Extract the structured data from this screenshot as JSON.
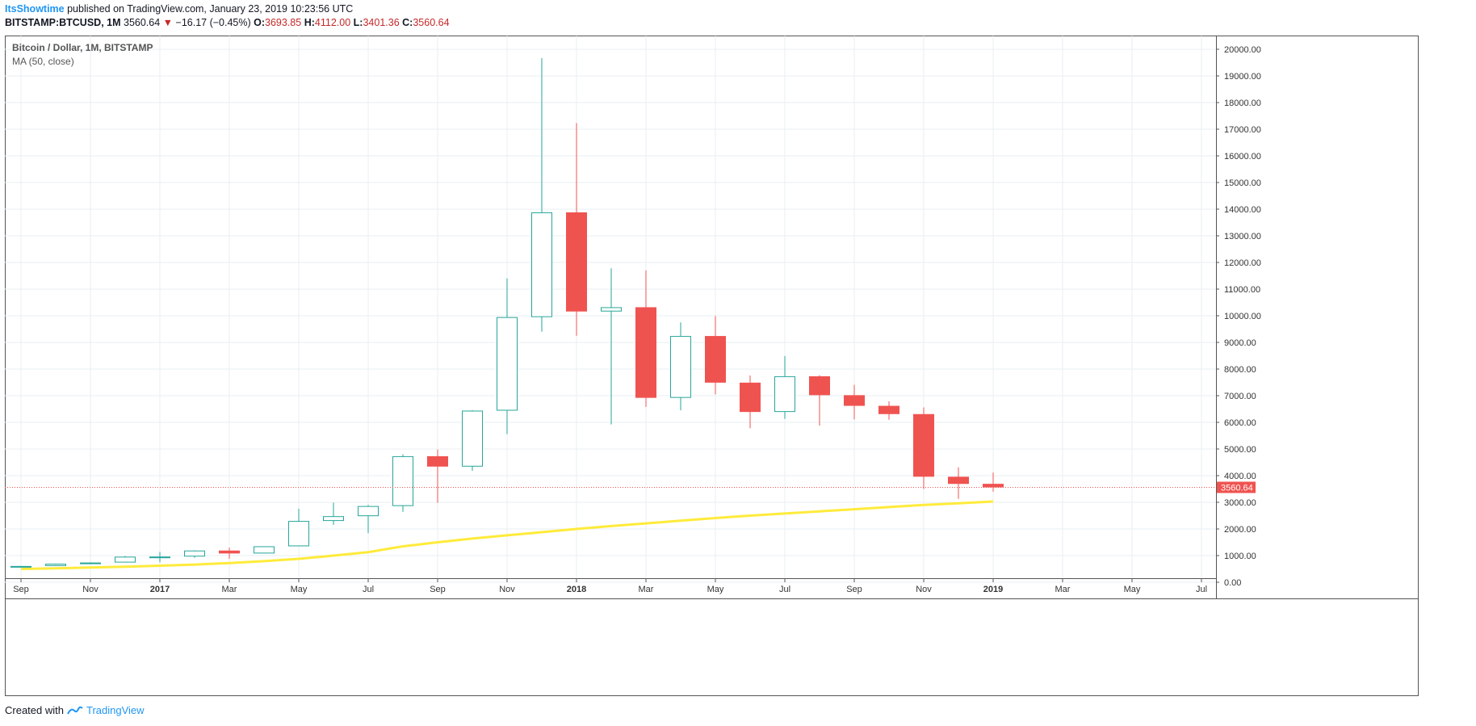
{
  "header": {
    "author": "ItsShowtime",
    "published_text": "published on TradingView.com, January 23, 2019 10:23:56 UTC"
  },
  "quote": {
    "symbol": "BITSTAMP:BTCUSD, 1M",
    "last": "3560.64",
    "arrow": "▼",
    "change": "−16.17 (−0.45%)",
    "o_label": "O:",
    "o_value": "3693.85",
    "h_label": "H:",
    "h_value": "4112.00",
    "l_label": "L:",
    "l_value": "3401.36",
    "c_label": "C:",
    "c_value": "3560.64"
  },
  "legend": {
    "series_title": "Bitcoin / Dollar, 1M, BITSTAMP",
    "indicator": "MA (50, close)"
  },
  "footer": {
    "created_with": "Created with",
    "brand": "TradingView"
  },
  "colors": {
    "up": "#26a69a",
    "down": "#ef5350",
    "ma": "#ffeb3b",
    "grid": "#e9eff3",
    "price_line": "#ef5350"
  },
  "chart_data": {
    "type": "candlestick",
    "title": "Bitcoin / Dollar, 1M, BITSTAMP",
    "ylim": [
      -700,
      20500
    ],
    "y_ticks": [
      0,
      1000,
      2000,
      3000,
      4000,
      5000,
      6000,
      7000,
      8000,
      9000,
      10000,
      11000,
      12000,
      13000,
      14000,
      15000,
      16000,
      17000,
      18000,
      19000,
      20000
    ],
    "y_tick_labels": [
      "0.00",
      "1000.00",
      "2000.00",
      "3000.00",
      "4000.00",
      "5000.00",
      "6000.00",
      "7000.00",
      "8000.00",
      "9000.00",
      "10000.00",
      "11000.00",
      "12000.00",
      "13000.00",
      "14000.00",
      "15000.00",
      "16000.00",
      "17000.00",
      "18000.00",
      "19000.00",
      "20000.00"
    ],
    "x_labels": [
      {
        "label": "Sep",
        "bold": false
      },
      {
        "label": "Nov",
        "bold": false
      },
      {
        "label": "2017",
        "bold": true
      },
      {
        "label": "Mar",
        "bold": false
      },
      {
        "label": "May",
        "bold": false
      },
      {
        "label": "Jul",
        "bold": false
      },
      {
        "label": "Sep",
        "bold": false
      },
      {
        "label": "Nov",
        "bold": false
      },
      {
        "label": "2018",
        "bold": true
      },
      {
        "label": "Mar",
        "bold": false
      },
      {
        "label": "May",
        "bold": false
      },
      {
        "label": "Jul",
        "bold": false
      },
      {
        "label": "Sep",
        "bold": false
      },
      {
        "label": "Nov",
        "bold": false
      },
      {
        "label": "2019",
        "bold": true
      },
      {
        "label": "Mar",
        "bold": false
      },
      {
        "label": "May",
        "bold": false
      },
      {
        "label": "Jul",
        "bold": false
      }
    ],
    "candles": [
      {
        "t": "2016-09",
        "o": 575,
        "h": 610,
        "l": 570,
        "c": 610
      },
      {
        "t": "2016-10",
        "o": 610,
        "h": 700,
        "l": 605,
        "c": 695
      },
      {
        "t": "2016-11",
        "o": 695,
        "h": 750,
        "l": 690,
        "c": 740
      },
      {
        "t": "2016-12",
        "o": 740,
        "h": 980,
        "l": 740,
        "c": 960
      },
      {
        "t": "2017-01",
        "o": 960,
        "h": 1140,
        "l": 750,
        "c": 965
      },
      {
        "t": "2017-02",
        "o": 965,
        "h": 1200,
        "l": 915,
        "c": 1190
      },
      {
        "t": "2017-03",
        "o": 1190,
        "h": 1300,
        "l": 880,
        "c": 1080
      },
      {
        "t": "2017-04",
        "o": 1080,
        "h": 1350,
        "l": 1080,
        "c": 1350
      },
      {
        "t": "2017-05",
        "o": 1350,
        "h": 2760,
        "l": 1350,
        "c": 2300
      },
      {
        "t": "2017-06",
        "o": 2300,
        "h": 2990,
        "l": 2150,
        "c": 2480
      },
      {
        "t": "2017-07",
        "o": 2480,
        "h": 2900,
        "l": 1840,
        "c": 2860
      },
      {
        "t": "2017-08",
        "o": 2860,
        "h": 4800,
        "l": 2640,
        "c": 4730
      },
      {
        "t": "2017-09",
        "o": 4730,
        "h": 4980,
        "l": 2980,
        "c": 4340
      },
      {
        "t": "2017-10",
        "o": 4340,
        "h": 6460,
        "l": 4180,
        "c": 6440
      },
      {
        "t": "2017-11",
        "o": 6440,
        "h": 11400,
        "l": 5560,
        "c": 9950
      },
      {
        "t": "2017-12",
        "o": 9950,
        "h": 19670,
        "l": 9400,
        "c": 13880
      },
      {
        "t": "2018-01",
        "o": 13880,
        "h": 17230,
        "l": 9250,
        "c": 10160
      },
      {
        "t": "2018-02",
        "o": 10160,
        "h": 11780,
        "l": 5920,
        "c": 10320
      },
      {
        "t": "2018-03",
        "o": 10320,
        "h": 11700,
        "l": 6580,
        "c": 6920
      },
      {
        "t": "2018-04",
        "o": 6920,
        "h": 9750,
        "l": 6450,
        "c": 9240
      },
      {
        "t": "2018-05",
        "o": 9240,
        "h": 9990,
        "l": 7050,
        "c": 7490
      },
      {
        "t": "2018-06",
        "o": 7490,
        "h": 7760,
        "l": 5780,
        "c": 6390
      },
      {
        "t": "2018-07",
        "o": 6390,
        "h": 8490,
        "l": 6130,
        "c": 7730
      },
      {
        "t": "2018-08",
        "o": 7730,
        "h": 7770,
        "l": 5880,
        "c": 7020
      },
      {
        "t": "2018-09",
        "o": 7020,
        "h": 7410,
        "l": 6110,
        "c": 6620
      },
      {
        "t": "2018-10",
        "o": 6620,
        "h": 6790,
        "l": 6100,
        "c": 6310
      },
      {
        "t": "2018-11",
        "o": 6310,
        "h": 6560,
        "l": 3500,
        "c": 3960
      },
      {
        "t": "2018-12",
        "o": 3960,
        "h": 4310,
        "l": 3130,
        "c": 3690
      },
      {
        "t": "2019-01",
        "o": 3693.85,
        "h": 4112,
        "l": 3401.36,
        "c": 3560.64
      }
    ],
    "ma": {
      "name": "MA (50, close)",
      "values": [
        330,
        335,
        340,
        348,
        356,
        365,
        375,
        385,
        400,
        415,
        435,
        455,
        475,
        500,
        525,
        555,
        585,
        620,
        665,
        720,
        790,
        880,
        1000,
        1130,
        1350,
        1500,
        1640,
        1760,
        1880,
        2000,
        2110,
        2210,
        2310,
        2410,
        2500,
        2580,
        2660,
        2740,
        2820,
        2900,
        2960,
        3030
      ]
    },
    "last_price": 3560.64,
    "last_price_label": "3560.64"
  }
}
